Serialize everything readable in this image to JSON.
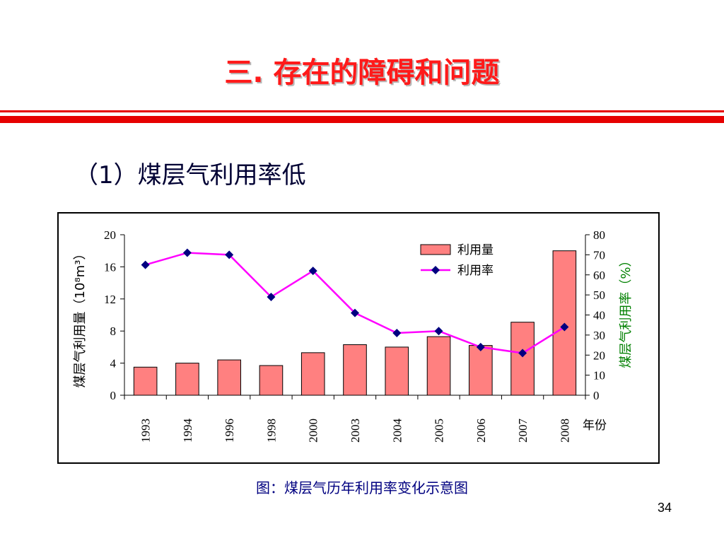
{
  "slide": {
    "title": "三. 存在的障碍和问题",
    "section_heading": "（1）煤层气利用率低",
    "caption": "图：煤层气历年利用率变化示意图",
    "page_number": "34"
  },
  "colors": {
    "title": "#ff1a1a",
    "rule": "#e60000",
    "heading": "#000033",
    "caption": "#000080",
    "bar_fill": "#ff8080",
    "line": "#ff00ff",
    "marker": "#000080",
    "right_axis_label": "#008000"
  },
  "chart_data": {
    "type": "bar",
    "categories": [
      "1993",
      "1994",
      "1996",
      "1998",
      "2000",
      "2003",
      "2004",
      "2005",
      "2006",
      "2007",
      "2008"
    ],
    "xlabel": "年份",
    "ylabel": "煤层气利用量（10⁸m³）",
    "y2label": "煤层气利用率（%）",
    "ylim": [
      0,
      20
    ],
    "y2lim": [
      0,
      80
    ],
    "yticks": [
      "0",
      "4",
      "8",
      "12",
      "16",
      "20"
    ],
    "y2ticks": [
      "0",
      "10",
      "20",
      "30",
      "40",
      "50",
      "60",
      "70",
      "80"
    ],
    "legend_position": "top-right",
    "grid": false,
    "series": [
      {
        "name": "利用量",
        "type": "bar",
        "axis": "left",
        "values": [
          3.5,
          4.0,
          4.4,
          3.7,
          5.3,
          6.3,
          6.0,
          7.3,
          6.2,
          9.1,
          18.0
        ]
      },
      {
        "name": "利用率",
        "type": "line",
        "axis": "right",
        "values": [
          65,
          71,
          70,
          49,
          62,
          41,
          31,
          32,
          24,
          21,
          34
        ]
      }
    ]
  }
}
